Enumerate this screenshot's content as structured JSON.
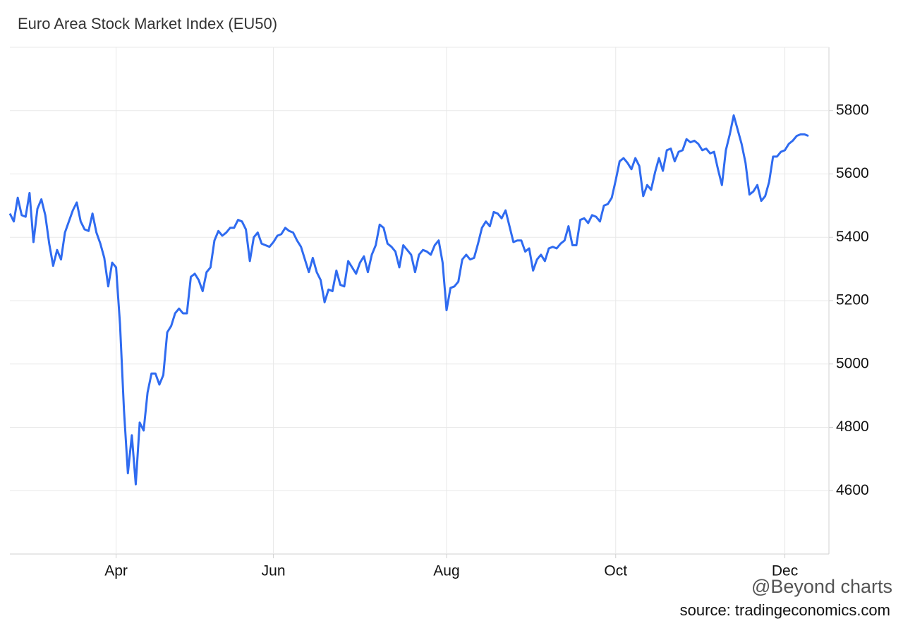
{
  "chart_data": {
    "type": "line",
    "title": "Euro Area Stock Market Index (EU50)",
    "source": "source: tradingeconomics.com",
    "watermark": "@Beyond charts",
    "color": "#2f6bf0",
    "categories": [
      null,
      null,
      null,
      null,
      null,
      null,
      null,
      null,
      null,
      null,
      null,
      null,
      null,
      null,
      null,
      null,
      null,
      null,
      null,
      null,
      null,
      null,
      null,
      null,
      null,
      null,
      null,
      "Apr",
      null,
      null,
      null,
      null,
      null,
      null,
      null,
      null,
      null,
      null,
      null,
      null,
      null,
      null,
      null,
      null,
      null,
      null,
      null,
      null,
      null,
      null,
      null,
      null,
      null,
      null,
      null,
      null,
      null,
      null,
      null,
      null,
      null,
      null,
      null,
      null,
      null,
      null,
      null,
      "Jun",
      null,
      null,
      null,
      null,
      null,
      null,
      null,
      null,
      null,
      null,
      null,
      null,
      null,
      null,
      null,
      null,
      null,
      null,
      null,
      null,
      null,
      null,
      null,
      null,
      null,
      null,
      null,
      null,
      null,
      null,
      null,
      null,
      null,
      null,
      null,
      null,
      null,
      null,
      null,
      null,
      null,
      null,
      null,
      "Aug",
      null,
      null,
      null,
      null,
      null,
      null,
      null,
      null,
      null,
      null,
      null,
      null,
      null,
      null,
      null,
      null,
      null,
      null,
      null,
      null,
      null,
      null,
      null,
      null,
      null,
      null,
      null,
      null,
      null,
      null,
      null,
      null,
      null,
      null,
      null,
      null,
      null,
      null,
      null,
      null,
      null,
      null,
      "Oct",
      null,
      null,
      null,
      null,
      null,
      null,
      null,
      null,
      null,
      null,
      null,
      null,
      null,
      null,
      null,
      null,
      null,
      null,
      null,
      null,
      null,
      null,
      null,
      null,
      null,
      null,
      null,
      null,
      null,
      null,
      null,
      null,
      null,
      null,
      null,
      null,
      null,
      null,
      null,
      null,
      null,
      null,
      "Dec",
      null,
      null,
      null,
      null,
      null,
      null
    ],
    "values": [
      5475,
      5450,
      5525,
      5470,
      5465,
      5540,
      5385,
      5490,
      5520,
      5470,
      5380,
      5310,
      5360,
      5330,
      5415,
      5450,
      5485,
      5510,
      5450,
      5425,
      5420,
      5475,
      5415,
      5380,
      5335,
      5245,
      5320,
      5305,
      5125,
      4855,
      4655,
      4775,
      4620,
      4815,
      4790,
      4910,
      4970,
      4970,
      4935,
      4965,
      5100,
      5120,
      5160,
      5175,
      5160,
      5160,
      5275,
      5285,
      5265,
      5230,
      5290,
      5305,
      5390,
      5420,
      5405,
      5415,
      5430,
      5430,
      5455,
      5450,
      5425,
      5325,
      5400,
      5415,
      5380,
      5375,
      5370,
      5385,
      5405,
      5410,
      5430,
      5420,
      5415,
      5390,
      5370,
      5330,
      5290,
      5335,
      5290,
      5265,
      5195,
      5235,
      5230,
      5295,
      5250,
      5245,
      5325,
      5305,
      5285,
      5320,
      5340,
      5290,
      5345,
      5375,
      5440,
      5430,
      5380,
      5370,
      5355,
      5305,
      5375,
      5360,
      5345,
      5290,
      5345,
      5360,
      5355,
      5345,
      5375,
      5390,
      5320,
      5170,
      5240,
      5245,
      5260,
      5330,
      5345,
      5330,
      5335,
      5380,
      5430,
      5450,
      5435,
      5480,
      5475,
      5460,
      5485,
      5435,
      5385,
      5390,
      5390,
      5355,
      5365,
      5295,
      5330,
      5345,
      5325,
      5365,
      5370,
      5365,
      5380,
      5390,
      5435,
      5375,
      5375,
      5455,
      5460,
      5445,
      5470,
      5465,
      5450,
      5500,
      5505,
      5525,
      5580,
      5640,
      5650,
      5635,
      5615,
      5650,
      5625,
      5530,
      5565,
      5550,
      5605,
      5650,
      5610,
      5675,
      5680,
      5640,
      5670,
      5675,
      5710,
      5700,
      5705,
      5695,
      5675,
      5680,
      5665,
      5670,
      5615,
      5565,
      5675,
      5725,
      5785,
      5740,
      5695,
      5635,
      5535,
      5545,
      5565,
      5515,
      5530,
      5575,
      5655,
      5655,
      5670,
      5675,
      5695,
      5705,
      5720,
      5725,
      5725,
      5720
    ],
    "ylim": [
      4400,
      6000
    ],
    "yticks": [
      4600,
      4800,
      5000,
      5200,
      5400,
      5600,
      5800
    ],
    "grid": true
  }
}
